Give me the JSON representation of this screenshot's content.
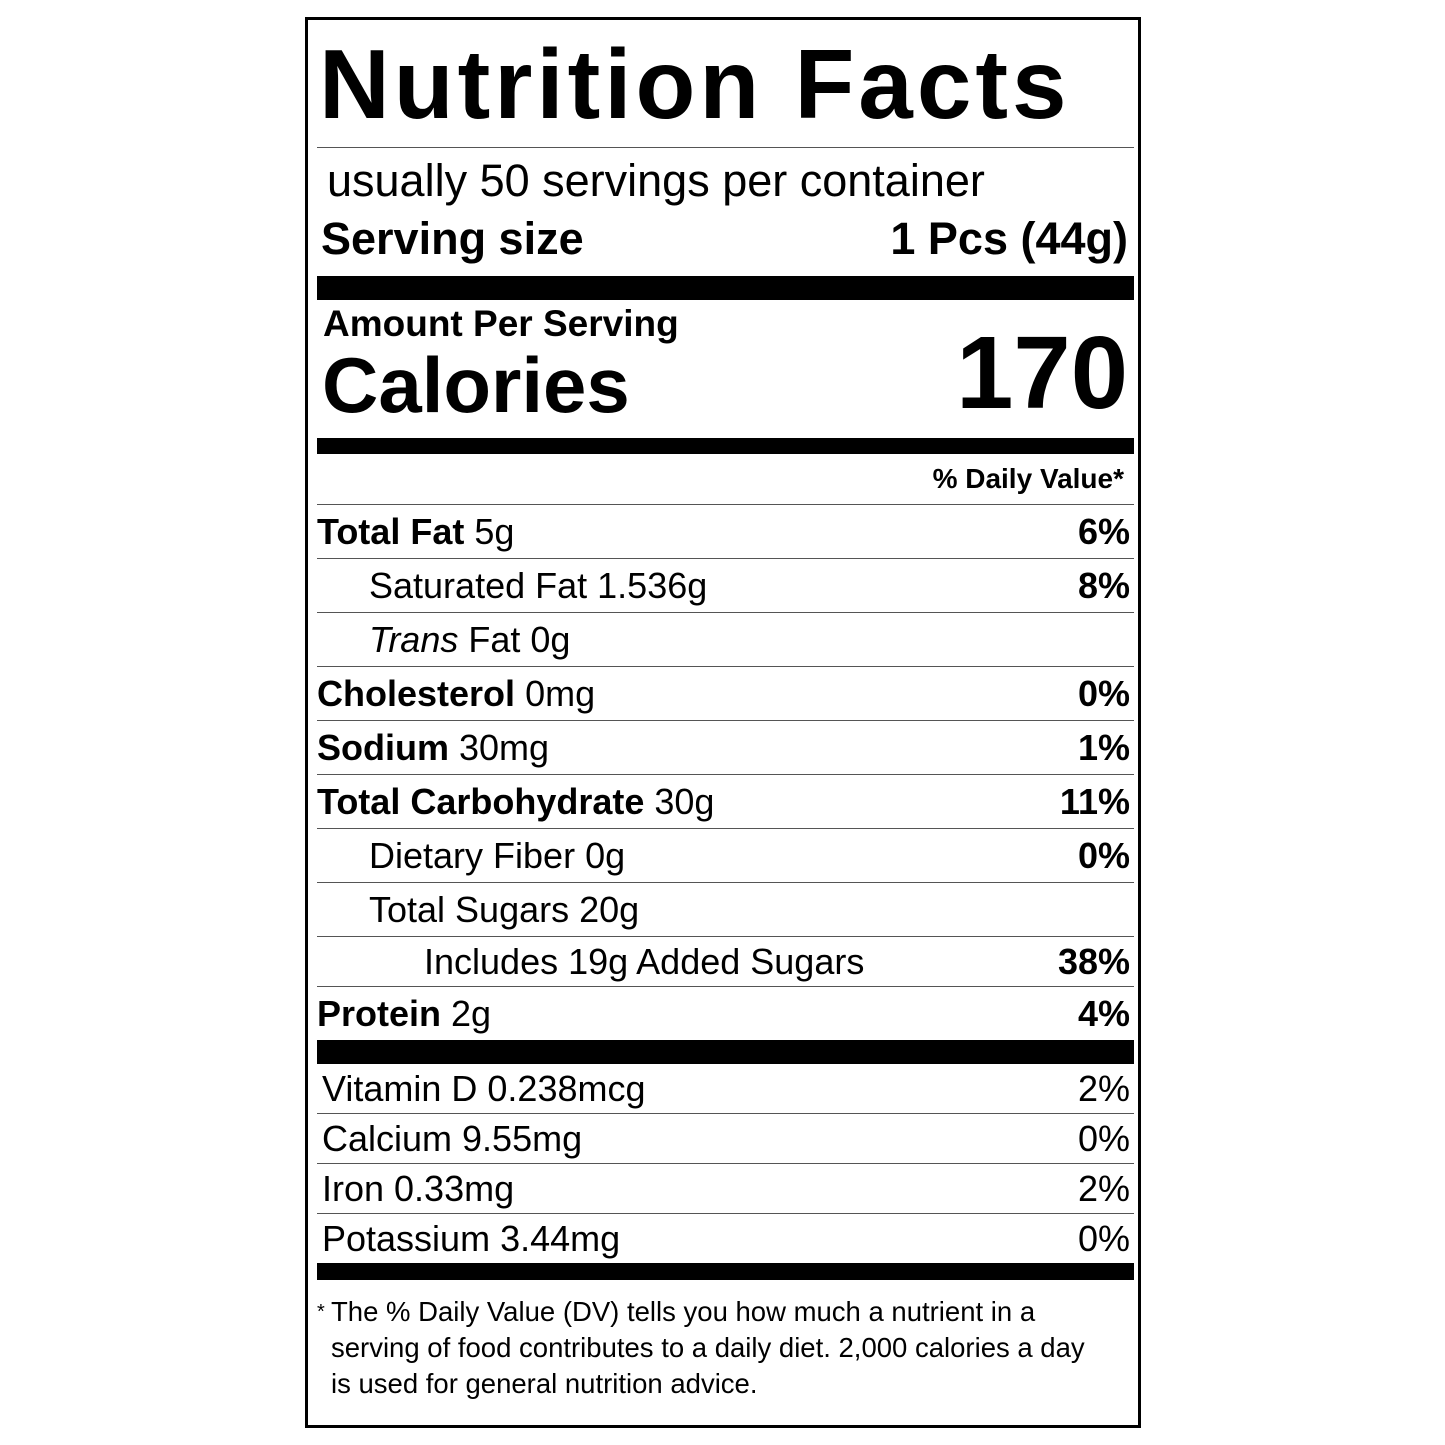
{
  "title": "Nutrition Facts",
  "servings_per_container": "usually 50 servings per container",
  "serving_size": {
    "label": "Serving size",
    "value": "1 Pcs (44g)"
  },
  "amount_per_serving": "Amount Per Serving",
  "calories": {
    "label": "Calories",
    "value": "170"
  },
  "daily_value_header": "% Daily Value*",
  "nutrients": [
    {
      "name": "Total Fat",
      "amount": "5g",
      "dv": "6%"
    },
    {
      "name": "Saturated Fat",
      "amount": "1.536g",
      "dv": "8%"
    },
    {
      "name": "Trans",
      "name_rest": "Fat",
      "amount": "0g",
      "dv": ""
    },
    {
      "name": "Cholesterol",
      "amount": "0mg",
      "dv": "0%"
    },
    {
      "name": "Sodium",
      "amount": "30mg",
      "dv": "1%"
    },
    {
      "name": "Total Carbohydrate",
      "amount": "30g",
      "dv": "11%"
    },
    {
      "name": "Dietary Fiber",
      "amount": "0g",
      "dv": "0%"
    },
    {
      "name": "Total Sugars",
      "amount": "20g",
      "dv": ""
    },
    {
      "name": "Includes 19g Added Sugars",
      "amount": "",
      "dv": "38%"
    },
    {
      "name": "Protein",
      "amount": "2g",
      "dv": "4%"
    }
  ],
  "vitamins": [
    {
      "label": "Vitamin D 0.238mcg",
      "dv": "2%"
    },
    {
      "label": "Calcium 9.55mg",
      "dv": "0%"
    },
    {
      "label": "Iron 0.33mg",
      "dv": "2%"
    },
    {
      "label": "Potassium 3.44mg",
      "dv": "0%"
    }
  ],
  "footnote": {
    "star": "*",
    "text": "The % Daily Value (DV) tells you how much a nutrient in a serving of food contributes to a daily diet. 2,000 calories a day is used for general nutrition advice."
  }
}
